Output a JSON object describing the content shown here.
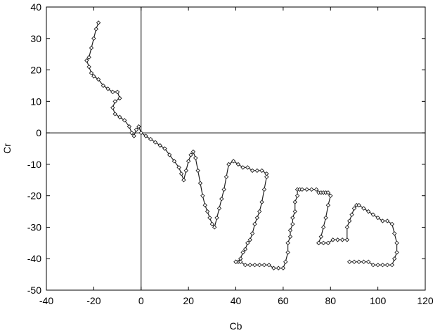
{
  "chart_data": {
    "type": "line",
    "title": "",
    "xlabel": "Cb",
    "ylabel": "Cr",
    "xlim": [
      -40,
      120
    ],
    "ylim": [
      -50,
      40
    ],
    "xticks": [
      "-40",
      "-20",
      "0",
      "20",
      "40",
      "60",
      "80",
      "100",
      "120"
    ],
    "yticks": [
      "40",
      "30",
      "20",
      "10",
      "0",
      "-10",
      "-20",
      "-30",
      "-40",
      "-50"
    ],
    "grid": false,
    "reference_lines": {
      "x": 0,
      "y": 0
    },
    "marker": "diamond",
    "series": [
      {
        "x": [
          -18,
          -19,
          -20,
          -21,
          -22,
          -23,
          -22,
          -21,
          -20,
          -18,
          -16,
          -14,
          -12,
          -10,
          -9,
          -11,
          -12,
          -11,
          -9,
          -7,
          -5,
          -4,
          -3,
          -2,
          -1,
          0,
          2,
          4,
          6,
          8,
          10,
          12,
          14,
          16,
          17,
          18,
          19,
          20,
          21,
          22,
          23,
          24,
          25,
          26,
          27,
          28,
          29,
          30,
          31,
          32,
          33,
          34,
          35,
          36,
          37,
          39,
          41,
          43,
          45,
          47,
          49,
          51,
          53,
          53,
          52,
          51,
          50,
          49,
          48,
          47,
          46,
          45,
          44,
          43,
          42,
          41,
          40,
          40,
          42,
          44,
          46,
          48,
          50,
          52,
          54,
          56,
          58,
          60,
          61,
          62,
          62,
          63,
          63,
          64,
          64,
          65,
          65,
          66,
          66,
          67,
          68,
          70,
          72,
          74,
          75,
          76,
          77,
          78,
          79,
          80,
          79,
          78,
          77,
          76,
          75,
          75,
          77,
          79,
          81,
          83,
          85,
          87,
          87,
          88,
          89,
          90,
          91,
          92,
          94,
          96,
          98,
          100,
          102,
          104,
          106,
          107,
          108,
          108,
          107,
          106,
          104,
          102,
          100,
          98,
          96,
          94,
          92,
          90,
          88
        ],
        "y": [
          35,
          33,
          30,
          27,
          24,
          23,
          21,
          19,
          18,
          17,
          15,
          14,
          13,
          13,
          11,
          10,
          8,
          6,
          5,
          4,
          2,
          0,
          -1,
          1,
          2,
          0,
          -1,
          -2,
          -3,
          -4,
          -5,
          -7,
          -9,
          -11,
          -13,
          -15,
          -12,
          -9,
          -7,
          -6,
          -8,
          -12,
          -16,
          -20,
          -23,
          -25,
          -27,
          -29,
          -30,
          -27,
          -24,
          -21,
          -18,
          -14,
          -10,
          -9,
          -10,
          -11,
          -11,
          -12,
          -12,
          -12,
          -13,
          -14,
          -18,
          -22,
          -25,
          -27,
          -29,
          -32,
          -34,
          -35,
          -37,
          -38,
          -40,
          -41,
          -41,
          -41,
          -41,
          -42,
          -42,
          -42,
          -42,
          -42,
          -42,
          -43,
          -43,
          -43,
          -41,
          -38,
          -35,
          -33,
          -31,
          -29,
          -27,
          -25,
          -22,
          -20,
          -18,
          -18,
          -18,
          -18,
          -18,
          -18,
          -19,
          -19,
          -19,
          -19,
          -19,
          -20,
          -23,
          -27,
          -30,
          -33,
          -35,
          -35,
          -35,
          -35,
          -34,
          -34,
          -34,
          -34,
          -30,
          -28,
          -26,
          -24,
          -23,
          -23,
          -24,
          -25,
          -26,
          -27,
          -28,
          -28,
          -29,
          -32,
          -35,
          -38,
          -40,
          -42,
          -42,
          -42,
          -42,
          -42,
          -41,
          -41,
          -41,
          -41,
          -41
        ]
      }
    ]
  }
}
